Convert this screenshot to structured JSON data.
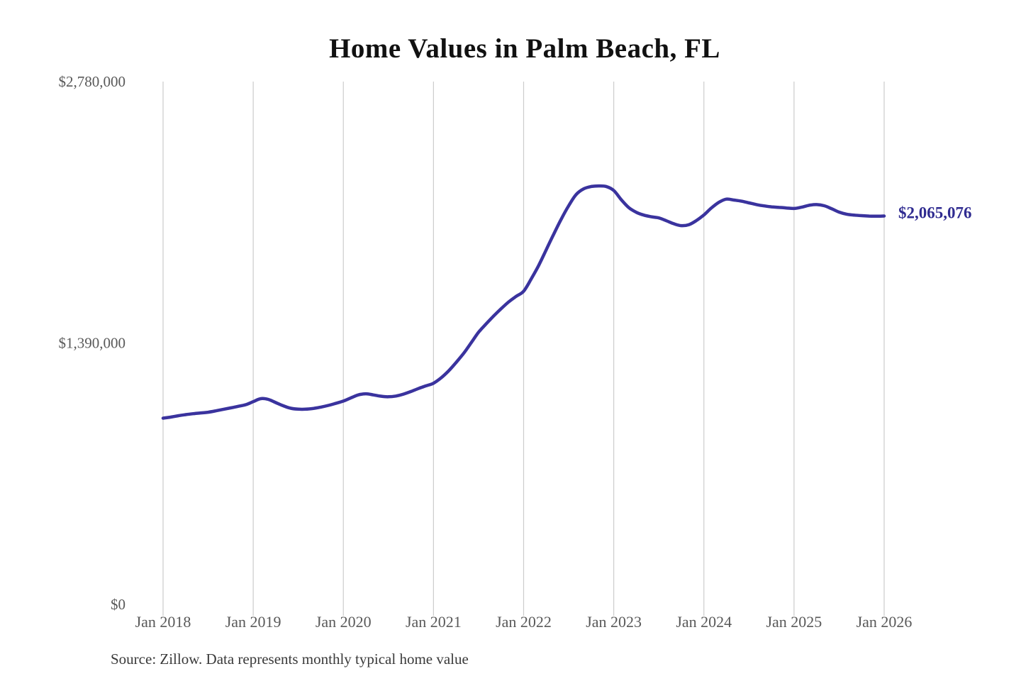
{
  "chart_data": {
    "type": "line",
    "title": "Home Values in Palm Beach, FL",
    "xlabel": "",
    "ylabel": "",
    "ylim": [
      0,
      2780000
    ],
    "x_range": [
      "Jan 2018",
      "Jan 2026"
    ],
    "grid": "vertical-only",
    "legend": "none",
    "line_color": "#3a339e",
    "gridline_color": "#cccccc",
    "axis_label_color": "#595959",
    "title_color": "#111111",
    "y_ticks": [
      {
        "value": 0,
        "label": "$0"
      },
      {
        "value": 1390000,
        "label": "$1,390,000"
      },
      {
        "value": 2780000,
        "label": "$2,780,000"
      }
    ],
    "x_ticks": [
      "Jan 2018",
      "Jan 2019",
      "Jan 2020",
      "Jan 2021",
      "Jan 2022",
      "Jan 2023",
      "Jan 2024",
      "Jan 2025",
      "Jan 2026"
    ],
    "annotation": {
      "label": "$2,065,076",
      "value": 2065076,
      "color": "#2f2b90"
    },
    "series": [
      {
        "name": "Monthly typical home value",
        "start_month": "2018-01",
        "end_month": "2026-01",
        "interval": "monthly",
        "values": [
          990000,
          996000,
          1003000,
          1009000,
          1014000,
          1018000,
          1022000,
          1029000,
          1037000,
          1045000,
          1053000,
          1062000,
          1078000,
          1094000,
          1090000,
          1073000,
          1056000,
          1043000,
          1038000,
          1038000,
          1042000,
          1049000,
          1058000,
          1069000,
          1081000,
          1098000,
          1114000,
          1120000,
          1114000,
          1107000,
          1104000,
          1108000,
          1118000,
          1132000,
          1148000,
          1162000,
          1176000,
          1204000,
          1241000,
          1286000,
          1334000,
          1390000,
          1447000,
          1491000,
          1533000,
          1572000,
          1608000,
          1638000,
          1665000,
          1730000,
          1802000,
          1885000,
          1968000,
          2048000,
          2120000,
          2180000,
          2210000,
          2222000,
          2225000,
          2222000,
          2201000,
          2152000,
          2110000,
          2085000,
          2070000,
          2061000,
          2055000,
          2040000,
          2024000,
          2014000,
          2019000,
          2041000,
          2071000,
          2108000,
          2138000,
          2155000,
          2150000,
          2144000,
          2135000,
          2126000,
          2119000,
          2114000,
          2111000,
          2108000,
          2105000,
          2112000,
          2122000,
          2126000,
          2120000,
          2104000,
          2086000,
          2075000,
          2070000,
          2067000,
          2065000,
          2064000,
          2065076
        ]
      }
    ],
    "source": "Source: Zillow. Data represents monthly typical home value"
  }
}
